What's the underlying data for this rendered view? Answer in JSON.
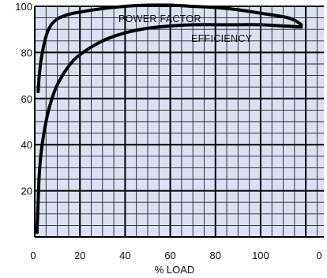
{
  "chart_data": {
    "type": "line",
    "title": "",
    "xlabel": "% LOAD",
    "ylabel": "",
    "xlim": [
      0,
      128
    ],
    "ylim": [
      0,
      100
    ],
    "grid": true,
    "legend": "none",
    "x_tick_labels": [
      "0",
      "20",
      "40",
      "60",
      "80",
      "100",
      "0"
    ],
    "y_tick_labels": [
      "20",
      "40",
      "60",
      "80",
      "100"
    ],
    "series": [
      {
        "name": "POWER FACTOR",
        "x": [
          1.5,
          2,
          3,
          5,
          7,
          10,
          15,
          20,
          30,
          40,
          50,
          60,
          70,
          80,
          90,
          100,
          110,
          115,
          118
        ],
        "y": [
          63,
          70,
          78,
          87,
          91.5,
          94.5,
          96.5,
          97.5,
          99,
          100,
          100.5,
          100.5,
          100,
          99.5,
          98.5,
          97,
          95.5,
          94,
          92
        ]
      },
      {
        "name": "EFFICIENCY",
        "x": [
          1,
          1.5,
          2,
          3,
          5,
          7,
          10,
          15,
          20,
          30,
          40,
          50,
          60,
          70,
          80,
          90,
          100,
          110,
          118
        ],
        "y": [
          2,
          15,
          27,
          38,
          50,
          58,
          66,
          74,
          79,
          85,
          88.5,
          90.5,
          91.5,
          92,
          92,
          92,
          92,
          91.5,
          91
        ]
      }
    ]
  }
}
